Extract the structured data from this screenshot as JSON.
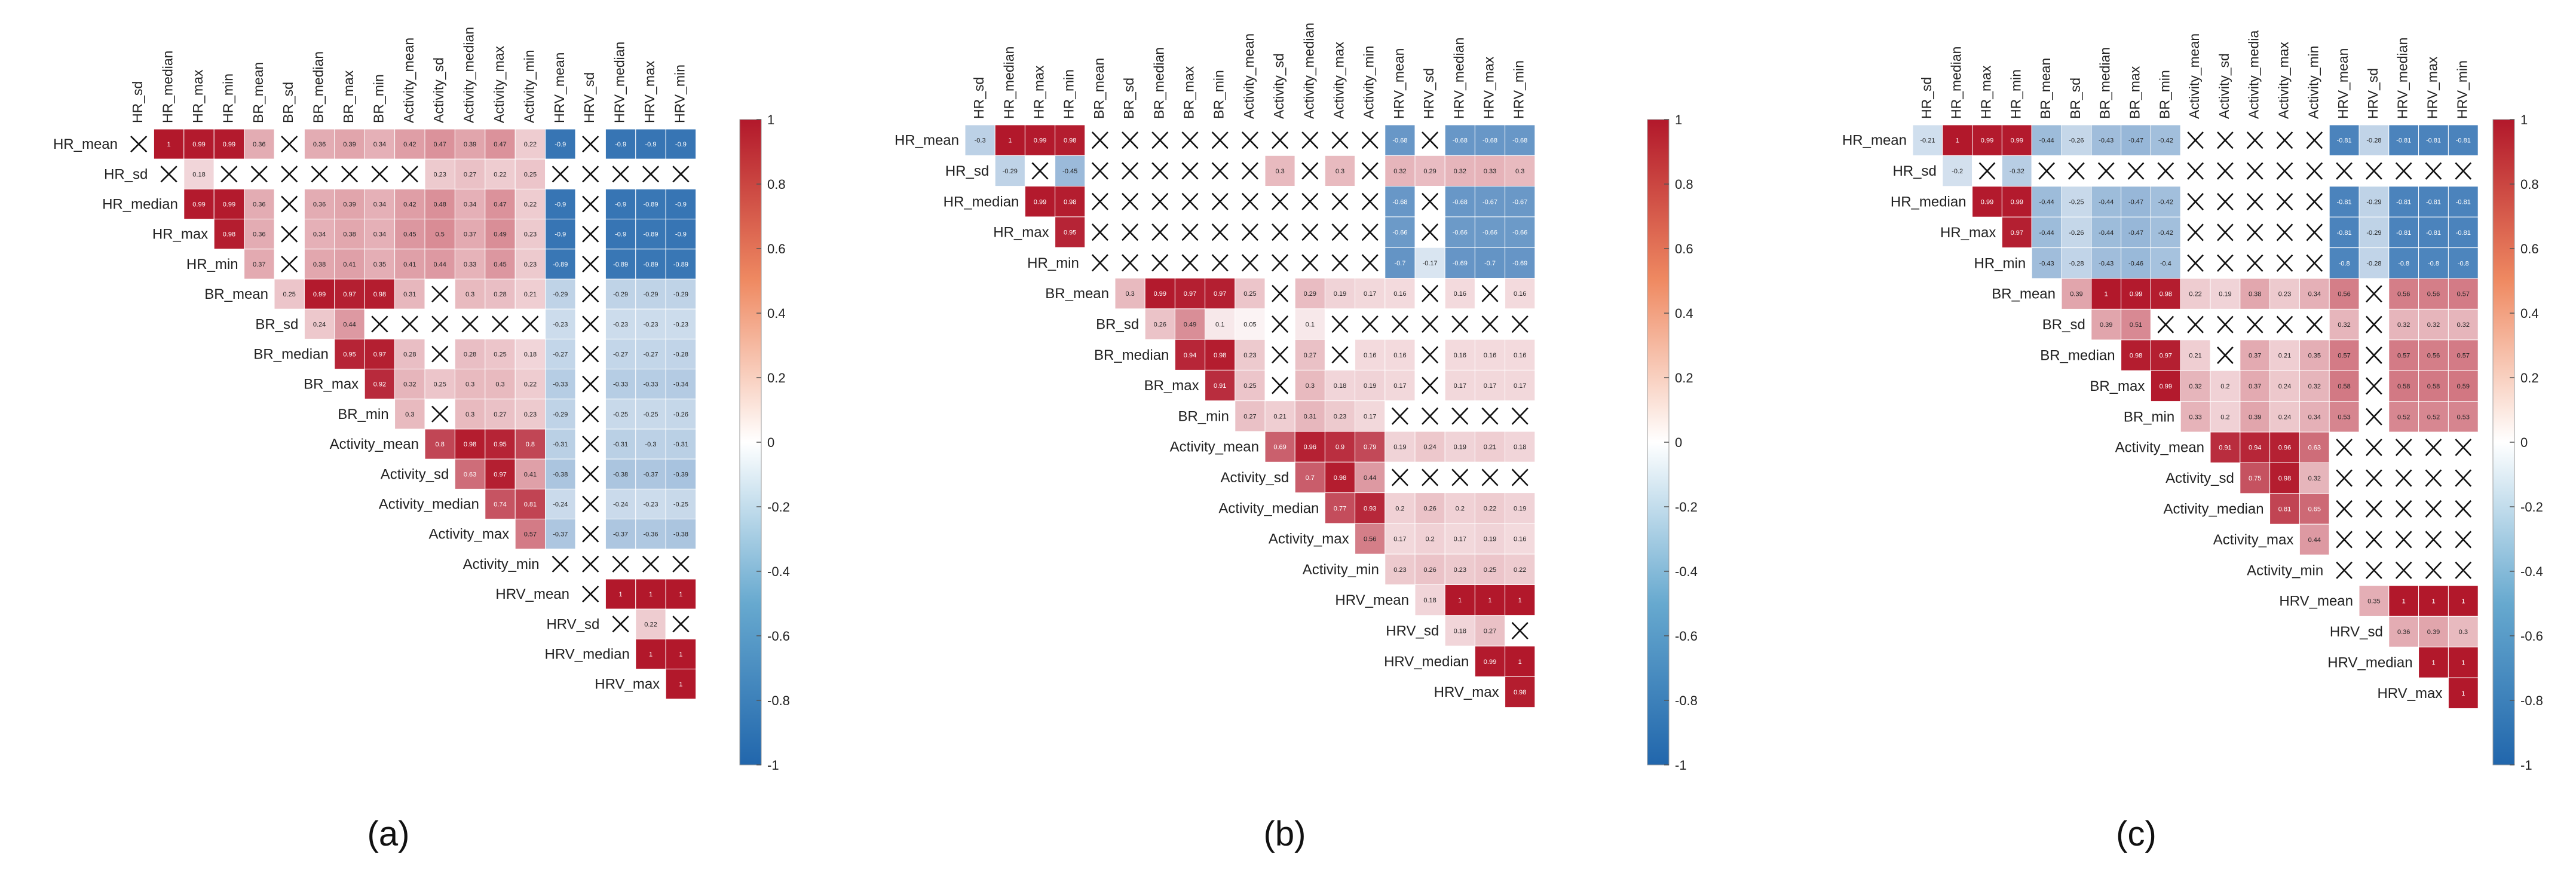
{
  "figure": {
    "panel_labels": [
      "(a)",
      "(b)",
      "(c)"
    ]
  },
  "colors": {
    "negative": "#2166ac",
    "zero": "#ffffff",
    "positive": "#b2182b",
    "text": "#222222"
  },
  "colorbar_ticks": [
    "1",
    "0.8",
    "0.6",
    "0.4",
    "0.2",
    "0",
    "-0.2",
    "-0.4",
    "-0.6",
    "-0.8",
    "-1"
  ],
  "chart_data": [
    {
      "type": "heatmap",
      "title": "(a)",
      "layout": "upper-triangle correlation matrix",
      "row_labels": [
        "HR_mean",
        "HR_sd",
        "HR_median",
        "HR_max",
        "HR_min",
        "BR_mean",
        "BR_sd",
        "BR_median",
        "BR_max",
        "BR_min",
        "Activity_mean",
        "Activity_sd",
        "Activity_median",
        "Activity_max",
        "Activity_min",
        "HRV_mean",
        "HRV_sd",
        "HRV_median",
        "HRV_max"
      ],
      "col_labels": [
        "HR_sd",
        "HR_median",
        "HR_max",
        "HR_min",
        "BR_mean",
        "BR_sd",
        "BR_median",
        "BR_max",
        "BR_min",
        "Activity_mean",
        "Activity_sd",
        "Activity_median",
        "Activity_max",
        "Activity_min",
        "HRV_mean",
        "HRV_sd",
        "HRV_median",
        "HRV_max",
        "HRV_min"
      ],
      "zlim": [
        -1,
        1
      ],
      "colorbar_ticks": [
        1,
        0.8,
        0.6,
        0.4,
        0.2,
        0,
        -0.2,
        -0.4,
        -0.6,
        -0.8,
        -1
      ],
      "insignificant_marker": "X",
      "values": [
        [
          "X",
          1,
          0.99,
          0.99,
          0.36,
          "X",
          0.36,
          0.39,
          0.34,
          0.42,
          0.47,
          0.39,
          0.47,
          0.22,
          -0.9,
          "X",
          -0.9,
          -0.9,
          -0.9
        ],
        [
          "X",
          0.18,
          "X",
          "X",
          "X",
          "X",
          "X",
          "X",
          "X",
          0.23,
          0.27,
          0.22,
          0.25,
          "X",
          "X",
          "X",
          "X",
          "X"
        ],
        [
          0.99,
          0.99,
          0.36,
          "X",
          0.36,
          0.39,
          0.34,
          0.42,
          0.48,
          0.34,
          0.47,
          0.22,
          -0.9,
          "X",
          -0.9,
          -0.89,
          -0.9
        ],
        [
          0.98,
          0.36,
          "X",
          0.34,
          0.38,
          0.34,
          0.45,
          0.5,
          0.37,
          0.49,
          0.23,
          -0.9,
          "X",
          -0.9,
          -0.89,
          -0.9
        ],
        [
          0.37,
          "X",
          0.38,
          0.41,
          0.35,
          0.41,
          0.44,
          0.33,
          0.45,
          0.23,
          -0.89,
          "X",
          -0.89,
          -0.89,
          -0.89
        ],
        [
          0.25,
          0.99,
          0.97,
          0.98,
          0.31,
          "X",
          0.3,
          0.28,
          0.21,
          -0.29,
          "X",
          -0.29,
          -0.29,
          -0.29
        ],
        [
          0.24,
          0.44,
          "X",
          "X",
          "X",
          "X",
          "X",
          "X",
          -0.23,
          "X",
          -0.23,
          -0.23,
          -0.23
        ],
        [
          0.95,
          0.97,
          0.28,
          "X",
          0.28,
          0.25,
          0.18,
          -0.27,
          "X",
          -0.27,
          -0.27,
          -0.28
        ],
        [
          0.92,
          0.32,
          0.25,
          0.3,
          0.3,
          0.22,
          -0.33,
          "X",
          -0.33,
          -0.33,
          -0.34
        ],
        [
          0.3,
          "X",
          0.3,
          0.27,
          0.23,
          -0.29,
          "X",
          -0.25,
          -0.25,
          -0.26
        ],
        [
          0.8,
          0.98,
          0.95,
          0.8,
          -0.31,
          "X",
          -0.31,
          -0.3,
          -0.31
        ],
        [
          0.63,
          0.97,
          0.41,
          -0.38,
          "X",
          -0.38,
          -0.37,
          -0.39
        ],
        [
          0.74,
          0.81,
          -0.24,
          "X",
          -0.24,
          -0.23,
          -0.25
        ],
        [
          0.57,
          -0.37,
          "X",
          -0.37,
          -0.36,
          -0.38
        ],
        [
          "X",
          "X",
          "X",
          "X",
          "X"
        ],
        [
          "X",
          1,
          1,
          1
        ],
        [
          "X",
          0.22,
          "X"
        ],
        [
          1,
          1
        ],
        [
          1
        ]
      ]
    },
    {
      "type": "heatmap",
      "title": "(b)",
      "layout": "upper-triangle correlation matrix",
      "row_labels": [
        "HR_mean",
        "HR_sd",
        "HR_median",
        "HR_max",
        "HR_min",
        "BR_mean",
        "BR_sd",
        "BR_median",
        "BR_max",
        "BR_min",
        "Activity_mean",
        "Activity_sd",
        "Activity_median",
        "Activity_max",
        "Activity_min",
        "HRV_mean",
        "HRV_sd",
        "HRV_median",
        "HRV_max"
      ],
      "col_labels": [
        "HR_sd",
        "HR_median",
        "HR_max",
        "HR_min",
        "BR_mean",
        "BR_sd",
        "BR_median",
        "BR_max",
        "BR_min",
        "Activity_mean",
        "Activity_sd",
        "Activity_median",
        "Activity_max",
        "Activity_min",
        "HRV_mean",
        "HRV_sd",
        "HRV_median",
        "HRV_max",
        "HRV_min"
      ],
      "zlim": [
        -1,
        1
      ],
      "colorbar_ticks": [
        1,
        0.8,
        0.6,
        0.4,
        0.2,
        0,
        -0.2,
        -0.4,
        -0.6,
        -0.8,
        -1
      ],
      "insignificant_marker": "X",
      "values": [
        [
          -0.3,
          1,
          0.99,
          0.98,
          "X",
          "X",
          "X",
          "X",
          "X",
          "X",
          "X",
          "X",
          "X",
          "X",
          -0.68,
          "X",
          -0.68,
          -0.68,
          -0.68
        ],
        [
          -0.29,
          "X",
          -0.45,
          "X",
          "X",
          "X",
          "X",
          "X",
          "X",
          0.3,
          "X",
          0.3,
          "X",
          0.32,
          0.29,
          0.32,
          0.33,
          0.3
        ],
        [
          0.99,
          0.98,
          "X",
          "X",
          "X",
          "X",
          "X",
          "X",
          "X",
          "X",
          "X",
          "X",
          -0.68,
          "X",
          -0.68,
          -0.67,
          -0.67
        ],
        [
          0.95,
          "X",
          "X",
          "X",
          "X",
          "X",
          "X",
          "X",
          "X",
          "X",
          "X",
          -0.66,
          "X",
          -0.66,
          -0.66,
          -0.66
        ],
        [
          "X",
          "X",
          "X",
          "X",
          "X",
          "X",
          "X",
          "X",
          "X",
          "X",
          -0.7,
          -0.17,
          -0.69,
          -0.7,
          -0.69
        ],
        [
          0.3,
          0.99,
          0.97,
          0.97,
          0.25,
          "X",
          0.29,
          0.19,
          0.17,
          0.16,
          "X",
          0.16,
          "X",
          0.16
        ],
        [
          0.26,
          0.49,
          0.1,
          0.05,
          "X",
          0.1,
          "X",
          "X",
          "X",
          "X",
          "X",
          "X",
          "X"
        ],
        [
          0.94,
          0.98,
          0.23,
          "X",
          0.27,
          "X",
          0.16,
          0.16,
          "X",
          0.16,
          0.16,
          0.16
        ],
        [
          0.91,
          0.25,
          "X",
          0.3,
          0.18,
          0.19,
          0.17,
          "X",
          0.17,
          0.17,
          0.17
        ],
        [
          0.27,
          0.21,
          0.31,
          0.23,
          0.17,
          "X",
          "X",
          "X",
          "X",
          "X"
        ],
        [
          0.69,
          0.96,
          0.9,
          0.79,
          0.19,
          0.24,
          0.19,
          0.21,
          0.18
        ],
        [
          0.7,
          0.98,
          0.44,
          "X",
          "X",
          "X",
          "X",
          "X"
        ],
        [
          0.77,
          0.93,
          0.2,
          0.26,
          0.2,
          0.22,
          0.19
        ],
        [
          0.56,
          0.17,
          0.2,
          0.17,
          0.19,
          0.16
        ],
        [
          0.23,
          0.26,
          0.23,
          0.25,
          0.22
        ],
        [
          0.18,
          1,
          1,
          1
        ],
        [
          0.18,
          0.27,
          "X"
        ],
        [
          0.99,
          1
        ],
        [
          0.98
        ]
      ]
    },
    {
      "type": "heatmap",
      "title": "(c)",
      "layout": "upper-triangle correlation matrix",
      "row_labels": [
        "HR_mean",
        "HR_sd",
        "HR_median",
        "HR_max",
        "HR_min",
        "BR_mean",
        "BR_sd",
        "BR_median",
        "BR_max",
        "BR_min",
        "Activity_mean",
        "Activity_sd",
        "Activity_median",
        "Activity_max",
        "Activity_min",
        "HRV_mean",
        "HRV_sd",
        "HRV_median",
        "HRV_max"
      ],
      "col_labels": [
        "HR_sd",
        "HR_median",
        "HR_max",
        "HR_min",
        "BR_mean",
        "BR_sd",
        "BR_median",
        "BR_max",
        "BR_min",
        "Activity_mean",
        "Activity_sd",
        "Activity_media",
        "Activity_max",
        "Activity_min",
        "HRV_mean",
        "HRV_sd",
        "HRV_median",
        "HRV_max",
        "HRV_min"
      ],
      "zlim": [
        -1,
        1
      ],
      "colorbar_ticks": [
        1,
        0.8,
        0.6,
        0.4,
        0.2,
        0,
        -0.2,
        -0.4,
        -0.6,
        -0.8,
        -1
      ],
      "insignificant_marker": "X",
      "values": [
        [
          -0.21,
          1,
          0.99,
          0.99,
          -0.44,
          -0.26,
          -0.43,
          -0.47,
          -0.42,
          "X",
          "X",
          "X",
          "X",
          "X",
          -0.81,
          -0.28,
          -0.81,
          -0.81,
          -0.81
        ],
        [
          -0.2,
          "X",
          -0.32,
          "X",
          "X",
          "X",
          "X",
          "X",
          "X",
          "X",
          "X",
          "X",
          "X",
          "X",
          "X",
          "X",
          "X",
          "X"
        ],
        [
          0.99,
          0.99,
          -0.44,
          -0.25,
          -0.44,
          -0.47,
          -0.42,
          "X",
          "X",
          "X",
          "X",
          "X",
          -0.81,
          -0.29,
          -0.81,
          -0.81,
          -0.81
        ],
        [
          0.97,
          -0.44,
          -0.26,
          -0.44,
          -0.47,
          -0.42,
          "X",
          "X",
          "X",
          "X",
          "X",
          -0.81,
          -0.29,
          -0.81,
          -0.81,
          -0.81
        ],
        [
          -0.43,
          -0.28,
          -0.43,
          -0.46,
          -0.4,
          "X",
          "X",
          "X",
          "X",
          "X",
          -0.8,
          -0.28,
          -0.8,
          -0.8,
          -0.8
        ],
        [
          0.39,
          1,
          0.99,
          0.98,
          0.22,
          0.19,
          0.38,
          0.23,
          0.34,
          0.56,
          "X",
          0.56,
          0.56,
          0.57
        ],
        [
          0.39,
          0.51,
          "X",
          "X",
          "X",
          "X",
          "X",
          "X",
          0.32,
          "X",
          0.32,
          0.32,
          0.32
        ],
        [
          0.98,
          0.97,
          0.21,
          "X",
          0.37,
          0.21,
          0.35,
          0.57,
          "X",
          0.57,
          0.56,
          0.57
        ],
        [
          0.99,
          0.32,
          0.2,
          0.37,
          0.24,
          0.32,
          0.58,
          "X",
          0.58,
          0.58,
          0.59
        ],
        [
          0.33,
          0.2,
          0.39,
          0.24,
          0.34,
          0.53,
          "X",
          0.52,
          0.52,
          0.53
        ],
        [
          0.91,
          0.94,
          0.96,
          0.63,
          "X",
          "X",
          "X",
          "X",
          "X"
        ],
        [
          0.75,
          0.98,
          0.32,
          "X",
          "X",
          "X",
          "X",
          "X"
        ],
        [
          0.81,
          0.65,
          "X",
          "X",
          "X",
          "X",
          "X"
        ],
        [
          0.44,
          "X",
          "X",
          "X",
          "X",
          "X"
        ],
        [
          "X",
          "X",
          "X",
          "X",
          "X"
        ],
        [
          0.35,
          1,
          1,
          1
        ],
        [
          0.36,
          0.39,
          0.3
        ],
        [
          1,
          1
        ],
        [
          1
        ]
      ]
    }
  ]
}
